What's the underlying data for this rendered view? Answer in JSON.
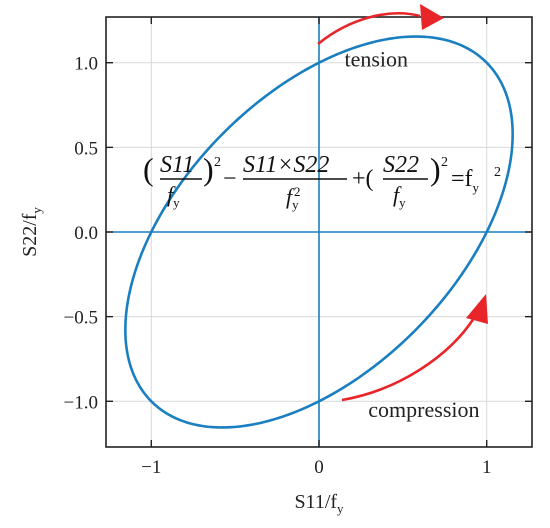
{
  "chart_data": {
    "type": "line",
    "title": "",
    "xlabel": "S11/f",
    "xlabel_sub": "y",
    "ylabel": "S22/f",
    "ylabel_sub": "y",
    "xlim": [
      -1.27,
      1.27
    ],
    "ylim": [
      -1.27,
      1.27
    ],
    "xticks": [
      -1,
      0,
      1
    ],
    "yticks": [
      -1.0,
      -0.5,
      0.0,
      0.5,
      1.0
    ],
    "xtick_labels": [
      "−1",
      "0",
      "1"
    ],
    "ytick_labels": [
      "−1.0",
      "−0.5",
      "0.0",
      "0.5",
      "1.0"
    ],
    "grid": true,
    "series": [
      {
        "curve": "yield ellipse (S11/fy)^2 - (S11/fy)(S22/fy) + (S22/fy)^2 = 1",
        "color": "#1a7fc0",
        "equation": {
          "lhs_open": "(",
          "t1_num": "S11",
          "t1_den": "f",
          "t1_den_sub": "y",
          "t1_exp": "2",
          "minus": "−",
          "t2_num": "S11×S22",
          "t2_den": "f",
          "t2_den_sub": "y",
          "t2_den_exp": "2",
          "plus": "+(",
          "t3_num": "S22",
          "t3_den": "f",
          "t3_den_sub": "y",
          "t3_exp": "2",
          "eq_rhs": "=f",
          "rhs_sub": "y",
          "rhs_exp": "2",
          "close": ")"
        }
      }
    ],
    "reference_lines": {
      "x0": 0,
      "y0": 0,
      "color": "#1a7fc0"
    },
    "annotations": [
      {
        "text": "tension",
        "x": 0.45,
        "y": 1.02
      },
      {
        "text": "compression",
        "x": 0.92,
        "y": -1.05
      }
    ],
    "arrow_color": "#e8262a"
  }
}
